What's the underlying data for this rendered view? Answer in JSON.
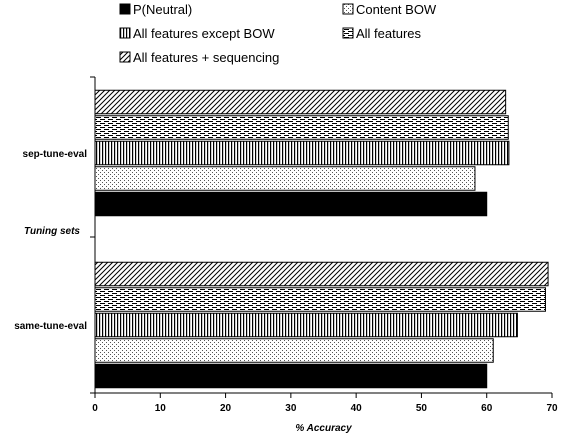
{
  "chart_data": {
    "type": "bar",
    "orientation": "horizontal",
    "categories": [
      "same-tune-eval",
      "sep-tune-eval"
    ],
    "ylabel": "Tuning sets",
    "xlabel": "% Accuracy",
    "xlim": [
      0,
      70
    ],
    "xticks": [
      "0",
      "10",
      "20",
      "30",
      "40",
      "50",
      "60",
      "70"
    ],
    "grid": false,
    "legend_position": "top",
    "series": [
      {
        "name": "P(Neutral)",
        "pattern": "solid",
        "values": [
          60.0,
          60.0
        ]
      },
      {
        "name": "Content BOW",
        "pattern": "dots",
        "values": [
          61.0,
          58.2
        ]
      },
      {
        "name": "All features except BOW",
        "pattern": "vertical-lines",
        "values": [
          64.7,
          63.4
        ]
      },
      {
        "name": "All features",
        "pattern": "dashes",
        "values": [
          69.0,
          63.3
        ]
      },
      {
        "name": "All features + sequencing",
        "pattern": "diagonal-hatch",
        "values": [
          69.4,
          62.9
        ]
      }
    ]
  }
}
